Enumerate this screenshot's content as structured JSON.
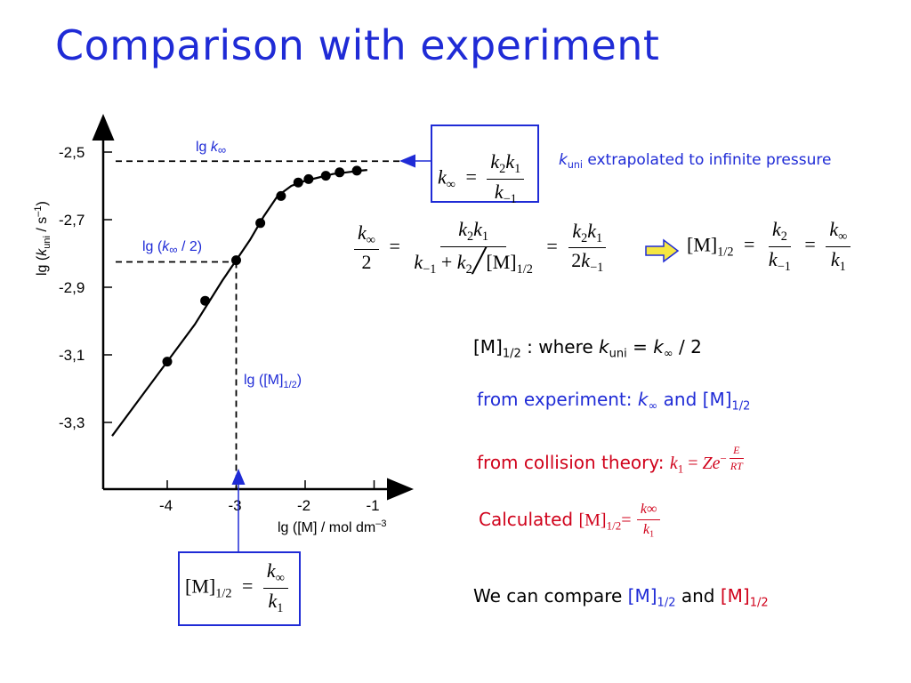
{
  "title": "Comparison with experiment",
  "chart_data": {
    "type": "scatter",
    "ylabel_parts": [
      "lg (",
      "k",
      "uni",
      " / s",
      "–1",
      ")"
    ],
    "xlabel_parts": [
      "lg ([M] / mol dm",
      "–3"
    ],
    "x_ticks": [
      -4,
      -3,
      -2,
      -1
    ],
    "x_tick_labels": [
      "-4",
      "-3",
      "-2",
      "-1"
    ],
    "y_ticks": [
      -2.5,
      -2.7,
      -2.9,
      -3.1,
      -3.3
    ],
    "y_tick_labels": [
      "-2,5",
      "-2,7",
      "-2,9",
      "-3,1",
      "-3,3"
    ],
    "xlim": [
      -4.9,
      -0.6
    ],
    "ylim": [
      -3.5,
      -2.45
    ],
    "points": {
      "x": [
        -4.0,
        -3.45,
        -3.0,
        -2.65,
        -2.35,
        -2.1,
        -1.95,
        -1.7,
        -1.5,
        -1.25
      ],
      "y": [
        -3.12,
        -2.94,
        -2.82,
        -2.71,
        -2.63,
        -2.59,
        -2.58,
        -2.57,
        -2.56,
        -2.555
      ]
    },
    "curve": {
      "x": [
        -4.8,
        -4.4,
        -4.0,
        -3.6,
        -3.2,
        -3.0,
        -2.8,
        -2.6,
        -2.4,
        -2.2,
        -2.0,
        -1.8,
        -1.6,
        -1.4,
        -1.2,
        -1.1
      ],
      "y": [
        -3.34,
        -3.23,
        -3.12,
        -3.01,
        -2.88,
        -2.82,
        -2.76,
        -2.69,
        -2.63,
        -2.6,
        -2.585,
        -2.575,
        -2.565,
        -2.56,
        -2.555,
        -2.553
      ]
    },
    "lg_kinf": -2.527,
    "lg_kinf_half": -2.825,
    "lg_M_half": -3.0,
    "annotations": {
      "lg_kinf": [
        "lg ",
        "k",
        "∞"
      ],
      "lg_kinf_half": [
        "lg (",
        "k",
        "∞",
        " / 2)"
      ],
      "lg_M_half": [
        "lg ([M]",
        "1/2",
        ")"
      ]
    }
  },
  "formulas": {
    "box1": {
      "kinf": "k",
      "inf": "∞",
      "eq": "=",
      "num": [
        "k",
        "2",
        "k",
        "1"
      ],
      "den": [
        "k",
        "−1"
      ]
    },
    "kuni_note": [
      "k",
      "uni",
      " extrapolated to infinite pressure"
    ],
    "main_eq": {
      "lhs_num": [
        "k",
        "∞"
      ],
      "lhs_den": "2",
      "mid_num": [
        "k",
        "2",
        "k",
        "1"
      ],
      "mid_den": [
        "k",
        "−1",
        " + ",
        "k",
        "2",
        "[M]",
        "1/2"
      ],
      "r_num": [
        "k",
        "2",
        "k",
        "1"
      ],
      "r_den": [
        "2",
        "k",
        "−1"
      ],
      "res": [
        "[M]",
        "1/2",
        "="
      ],
      "res_num1": [
        "k",
        "2"
      ],
      "res_den1": [
        "k",
        "−1"
      ],
      "res_num2": [
        "k",
        "∞"
      ],
      "res_den2": [
        "k",
        "1"
      ]
    },
    "box2": {
      "lhs": [
        "[M]",
        "1/2",
        "="
      ],
      "num": [
        "k",
        "∞"
      ],
      "den": [
        "k",
        "1"
      ]
    }
  },
  "notes": {
    "where": [
      "[M]",
      "1/2",
      " : where ",
      "k",
      "uni",
      " = ",
      "k",
      "∞",
      " / 2"
    ],
    "experiment": [
      "from experiment:  ",
      "k",
      "∞",
      " and [M]",
      "1/2"
    ],
    "collision": [
      "from collision theory: ",
      "k",
      "1",
      " = ",
      "Ze",
      "E",
      "RT"
    ],
    "calculated": [
      "Calculated ",
      "[M]",
      "1/2",
      "=",
      "k∞",
      "k",
      "1"
    ],
    "compare": [
      "We can compare ",
      "[M]",
      "1/2",
      " and ",
      "[M]",
      "1/2"
    ]
  },
  "colors": {
    "accent_blue": "#1f2bd6",
    "red": "#d0021b",
    "arrow_yellow": "#f5e642"
  }
}
